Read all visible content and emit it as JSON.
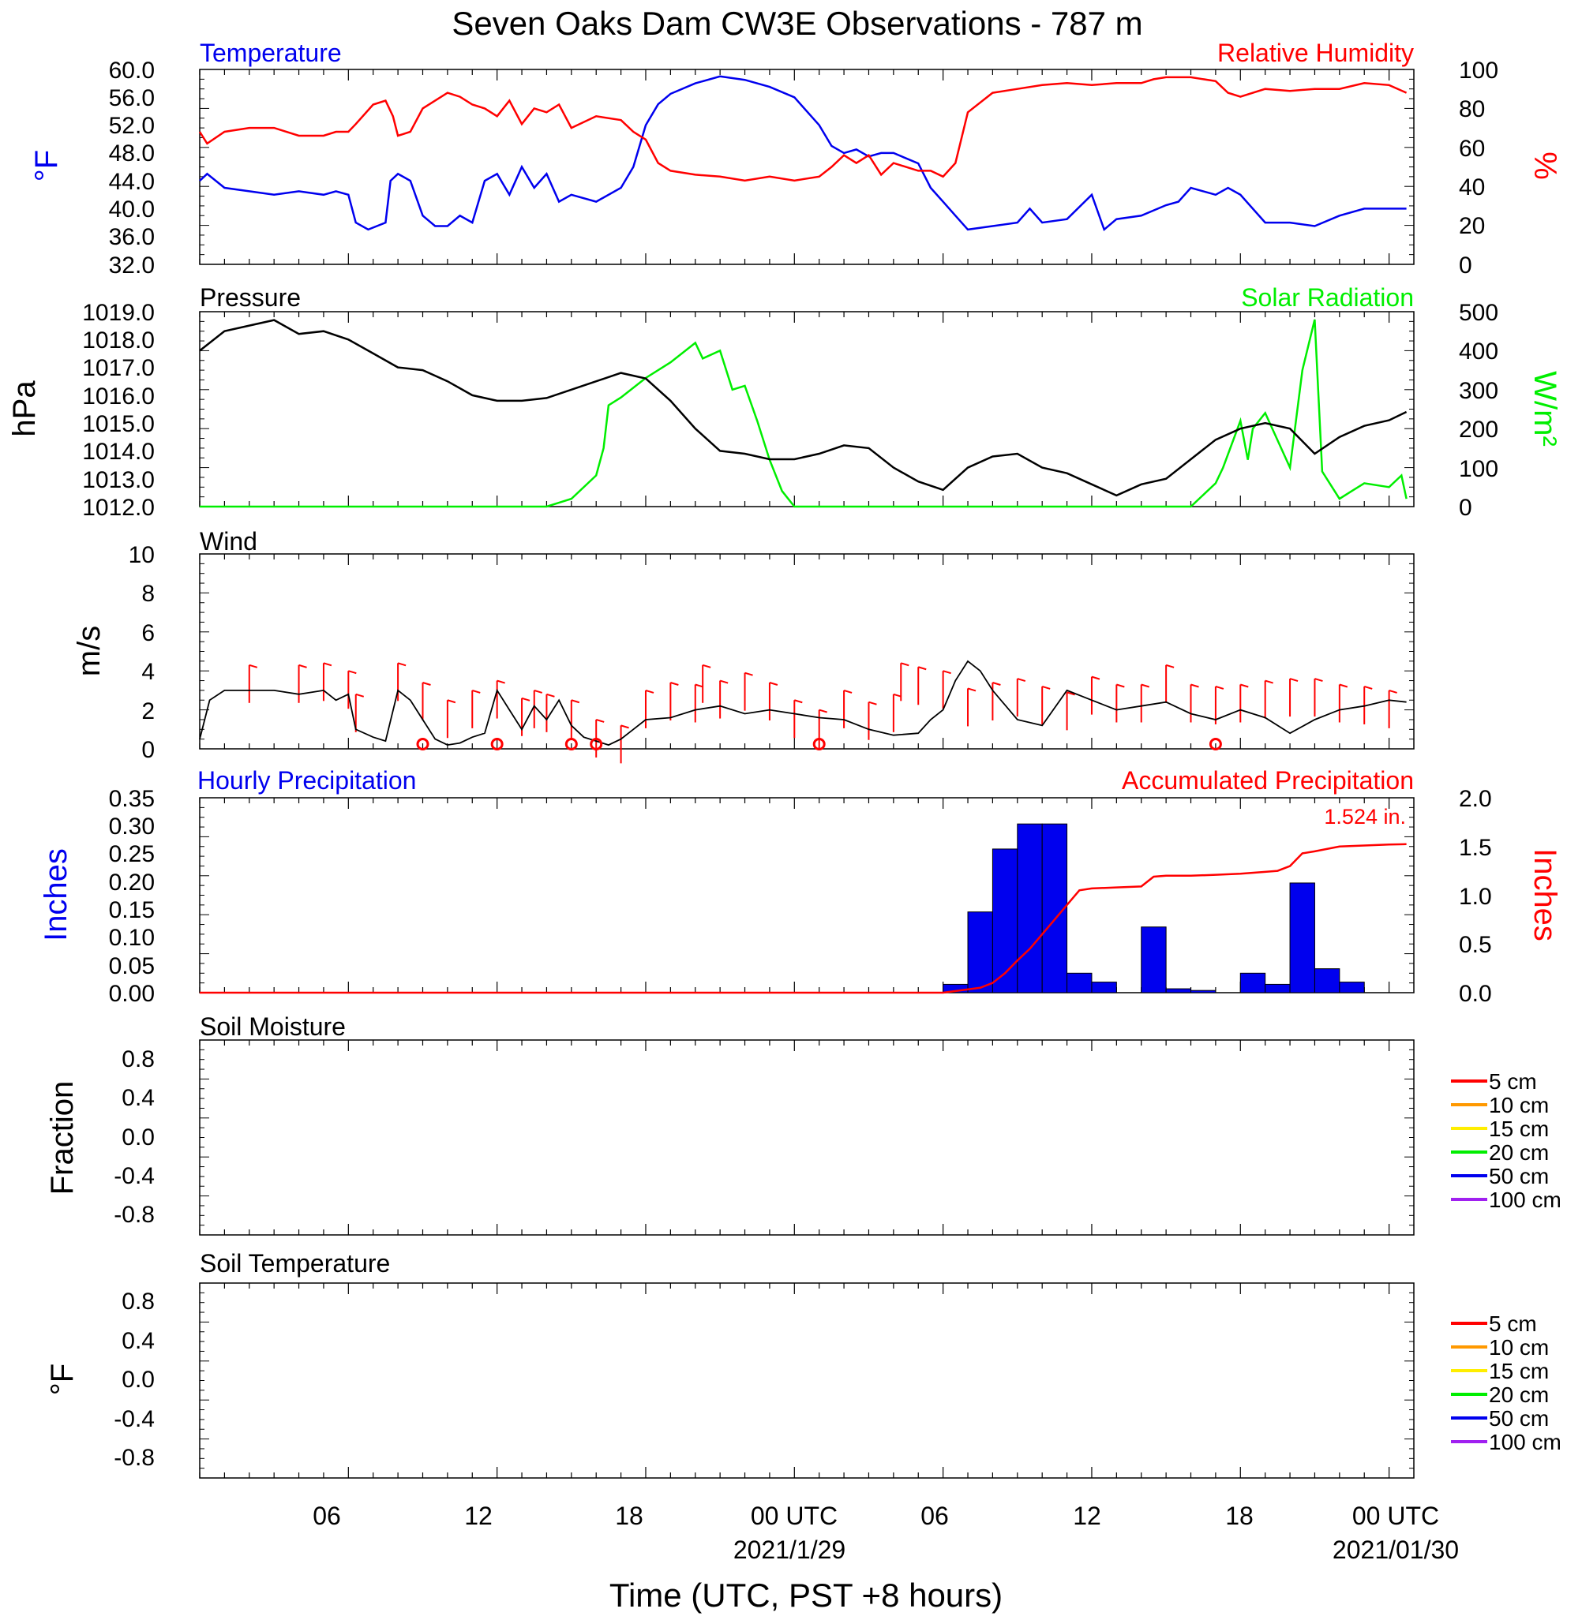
{
  "title": "Seven Oaks Dam CW3E Observations - 787 m",
  "x_axis": {
    "title": "Time (UTC, PST +8 hours)",
    "ticks": [
      "06",
      "12",
      "18",
      "00 UTC",
      "06",
      "12",
      "18",
      "00 UTC"
    ],
    "dates": [
      "2021/1/29",
      "2021/01/30"
    ]
  },
  "colors": {
    "temperature": "#0000ee",
    "humidity": "#ff0000",
    "pressure": "#000000",
    "solar": "#00ee00",
    "wind": "#000000",
    "wind_barb": "#ff0000",
    "hourly_precip": "#0000ee",
    "accum_precip": "#ff0000"
  },
  "panels": {
    "temp_rh": {
      "left_title": "Temperature",
      "right_title": "Relative Humidity",
      "left_unit": "°F",
      "right_unit": "%",
      "left_ticks": [
        "60.0",
        "56.0",
        "52.0",
        "48.0",
        "44.0",
        "40.0",
        "36.0",
        "32.0"
      ],
      "right_ticks": [
        "100",
        "80",
        "60",
        "40",
        "20",
        "0"
      ]
    },
    "pressure_solar": {
      "left_title": "Pressure",
      "right_title": "Solar Radiation",
      "left_unit": "hPa",
      "right_unit": "W/m²",
      "left_ticks": [
        "1019.0",
        "1018.0",
        "1017.0",
        "1016.0",
        "1015.0",
        "1014.0",
        "1013.0",
        "1012.0"
      ],
      "right_ticks": [
        "500",
        "400",
        "300",
        "200",
        "100",
        "0"
      ]
    },
    "wind": {
      "left_title": "Wind",
      "left_unit": "m/s",
      "left_ticks": [
        "10",
        "8",
        "6",
        "4",
        "2",
        "0"
      ]
    },
    "precip": {
      "left_title": "Hourly Precipitation",
      "right_title": "Accumulated Precipitation",
      "left_unit": "Inches",
      "right_unit": "Inches",
      "total_label": "1.524 in.",
      "left_ticks": [
        "0.35",
        "0.30",
        "0.25",
        "0.20",
        "0.15",
        "0.10",
        "0.05",
        "0.00"
      ],
      "right_ticks": [
        "2.0",
        "1.5",
        "1.0",
        "0.5",
        "0.0"
      ]
    },
    "soil_moisture": {
      "left_title": "Soil Moisture",
      "left_unit": "Fraction",
      "left_ticks": [
        "0.8",
        "0.4",
        "0.0",
        "-0.4",
        "-0.8"
      ],
      "legend": [
        "5 cm",
        "10 cm",
        "15 cm",
        "20 cm",
        "50 cm",
        "100 cm"
      ]
    },
    "soil_temp": {
      "left_title": "Soil Temperature",
      "left_unit": "°F",
      "left_ticks": [
        "0.8",
        "0.4",
        "0.0",
        "-0.4",
        "-0.8"
      ],
      "legend": [
        "5 cm",
        "10 cm",
        "15 cm",
        "20 cm",
        "50 cm",
        "100 cm"
      ]
    }
  },
  "legend_colors": [
    "#ff0000",
    "#ff9900",
    "#ffee00",
    "#00ee00",
    "#0000ee",
    "#a020f0"
  ],
  "chart_data": {
    "type": "line",
    "x_unit": "hours since 2021-01-28 00 UTC",
    "x_range": [
      0,
      49
    ],
    "temperature_F": {
      "ylim": [
        32,
        60
      ],
      "x": [
        0,
        0.3,
        1,
        2,
        3,
        4,
        5,
        5.5,
        6,
        6.3,
        6.8,
        7.5,
        7.7,
        8,
        8.5,
        9,
        9.5,
        10,
        10.5,
        11,
        11.5,
        12,
        12.5,
        13,
        13.5,
        14,
        14.5,
        15,
        16,
        17,
        17.5,
        18,
        18.5,
        19,
        20,
        21,
        22,
        23,
        24,
        25,
        25.5,
        26,
        26.5,
        27,
        27.5,
        28,
        29,
        29.5,
        30,
        30.5,
        31,
        32,
        33,
        33.5,
        34,
        35,
        36,
        36.5,
        37,
        38,
        39,
        39.5,
        40,
        40.5,
        41,
        41.5,
        42,
        43,
        44,
        45,
        46,
        47,
        48,
        48.7
      ],
      "y": [
        44,
        45,
        43,
        42.5,
        42,
        42.5,
        42,
        42.5,
        42,
        38,
        37,
        38,
        44,
        45,
        44,
        39,
        37.5,
        37.5,
        39,
        38,
        44,
        45,
        42,
        46,
        43,
        45,
        41,
        42,
        41,
        43,
        46,
        52,
        55,
        56.5,
        58,
        59,
        58.5,
        57.5,
        56,
        52,
        49,
        48,
        48.5,
        47.5,
        48,
        48,
        46.5,
        43,
        41,
        39,
        37,
        37.5,
        38,
        40,
        38,
        38.5,
        42,
        37,
        38.5,
        39,
        40.5,
        41,
        43,
        42.5,
        42,
        43,
        42,
        38,
        38,
        37.5,
        39,
        40,
        40,
        40
      ]
    },
    "humidity_pct": {
      "ylim": [
        0,
        100
      ],
      "x": [
        0,
        0.3,
        1,
        2,
        3,
        4,
        5,
        5.5,
        6,
        6.3,
        7,
        7.5,
        7.8,
        8,
        8.5,
        9,
        10,
        10.5,
        11,
        11.5,
        12,
        12.5,
        13,
        13.5,
        14,
        14.5,
        15,
        16,
        17,
        17.5,
        18,
        18.5,
        19,
        20,
        21,
        22,
        23,
        24,
        25,
        25.5,
        26,
        26.5,
        27,
        27.5,
        28,
        29,
        29.5,
        30,
        30.5,
        31,
        32,
        33,
        34,
        35,
        36,
        37,
        38,
        38.5,
        39,
        40,
        41,
        41.5,
        42,
        43,
        44,
        45,
        46,
        47,
        48,
        48.7
      ],
      "y": [
        68,
        62,
        68,
        70,
        70,
        66,
        66,
        68,
        68,
        72,
        82,
        84,
        76,
        66,
        68,
        80,
        88,
        86,
        82,
        80,
        76,
        84,
        72,
        80,
        78,
        82,
        70,
        76,
        74,
        68,
        64,
        52,
        48,
        46,
        45,
        43,
        45,
        43,
        45,
        50,
        56,
        52,
        56,
        46,
        52,
        48,
        48,
        45,
        52,
        78,
        88,
        90,
        92,
        93,
        92,
        93,
        93,
        95,
        96,
        96,
        94,
        88,
        86,
        90,
        89,
        90,
        90,
        93,
        92,
        88
      ]
    },
    "pressure_hPa": {
      "ylim": [
        1012,
        1019
      ],
      "x": [
        0,
        1,
        2,
        3,
        4,
        5,
        6,
        7,
        8,
        9,
        10,
        11,
        12,
        13,
        14,
        15,
        16,
        17,
        18,
        19,
        20,
        21,
        22,
        23,
        24,
        25,
        26,
        27,
        28,
        29,
        30,
        31,
        32,
        33,
        34,
        35,
        36,
        37,
        38,
        39,
        40,
        41,
        42,
        43,
        44,
        45,
        46,
        47,
        48,
        48.7
      ],
      "y": [
        1017.6,
        1018.3,
        1018.5,
        1018.7,
        1018.2,
        1018.3,
        1018.0,
        1017.5,
        1017.0,
        1016.9,
        1016.5,
        1016.0,
        1015.8,
        1015.8,
        1015.9,
        1016.2,
        1016.5,
        1016.8,
        1016.6,
        1015.8,
        1014.8,
        1014.0,
        1013.9,
        1013.7,
        1013.7,
        1013.9,
        1014.2,
        1014.1,
        1013.4,
        1012.9,
        1012.6,
        1013.4,
        1013.8,
        1013.9,
        1013.4,
        1013.2,
        1012.8,
        1012.4,
        1012.8,
        1013.0,
        1013.7,
        1014.4,
        1014.8,
        1015.0,
        1014.8,
        1013.9,
        1014.5,
        1014.9,
        1015.1,
        1015.4
      ]
    },
    "solar_Wm2": {
      "ylim": [
        0,
        500
      ],
      "x": [
        0,
        14,
        15,
        16,
        16.3,
        16.5,
        17,
        18,
        19,
        20,
        20.3,
        21,
        21.5,
        22,
        22.5,
        23,
        23.5,
        24,
        32,
        40,
        41,
        41.3,
        42,
        42.3,
        42.5,
        43,
        44,
        44.5,
        45,
        45.3,
        46,
        46.5,
        47,
        48,
        48.5,
        48.7
      ],
      "y": [
        0,
        0,
        20,
        80,
        150,
        260,
        280,
        330,
        370,
        420,
        380,
        400,
        300,
        310,
        220,
        120,
        40,
        0,
        0,
        0,
        60,
        100,
        220,
        120,
        200,
        240,
        100,
        350,
        480,
        90,
        20,
        40,
        60,
        50,
        80,
        20
      ]
    },
    "wind_ms": {
      "ylim": [
        0,
        10
      ],
      "x": [
        0,
        0.4,
        1,
        2,
        3,
        4,
        5,
        5.5,
        6,
        6.3,
        7,
        7.5,
        8,
        8.5,
        9,
        9.5,
        10,
        10.5,
        11,
        11.5,
        12,
        12.5,
        13,
        13.5,
        14,
        14.5,
        15,
        15.5,
        16,
        16.5,
        17,
        17.5,
        18,
        19,
        20,
        21,
        22,
        23,
        24,
        25,
        26,
        27,
        28,
        29,
        29.5,
        30,
        30.5,
        31,
        31.5,
        32,
        33,
        34,
        35,
        36,
        37,
        38,
        39,
        40,
        41,
        42,
        43,
        44,
        45,
        46,
        47,
        48,
        48.7
      ],
      "y": [
        0.5,
        2.5,
        3,
        3,
        3,
        2.8,
        3,
        2.5,
        2.8,
        1,
        0.6,
        0.4,
        3,
        2.5,
        1.5,
        0.5,
        0.2,
        0.3,
        0.6,
        0.8,
        3,
        2,
        1,
        2.2,
        1.5,
        2.5,
        1.2,
        0.6,
        0.4,
        0.2,
        0.5,
        1,
        1.5,
        1.6,
        2,
        2.2,
        1.8,
        2,
        1.8,
        1.6,
        1.5,
        1,
        0.7,
        0.8,
        1.5,
        2,
        3.5,
        4.5,
        4,
        3,
        1.5,
        1.2,
        3,
        2.5,
        2,
        2.2,
        2.4,
        1.8,
        1.5,
        2,
        1.6,
        0.8,
        1.5,
        2,
        2.2,
        2.5,
        2.4
      ]
    },
    "wind_calm_x": [
      9,
      12,
      15,
      16,
      25,
      41
    ],
    "wind_barbs": {
      "x": [
        2,
        4,
        5,
        6,
        6.3,
        8,
        9,
        10,
        11,
        12,
        13,
        13.5,
        14,
        15,
        16,
        17,
        18,
        19,
        20,
        20.3,
        21,
        22,
        23,
        24,
        25,
        26,
        27,
        28,
        28.3,
        29,
        30,
        31,
        32,
        33,
        34,
        35,
        36,
        37,
        38,
        39,
        40,
        41,
        42,
        43,
        44,
        45,
        46,
        47,
        48
      ],
      "speed": [
        4.3,
        4.3,
        4.4,
        4.0,
        2.8,
        4.4,
        3.4,
        2.5,
        3.0,
        3.5,
        2.6,
        3.0,
        2.8,
        2.5,
        1.5,
        1.2,
        3.0,
        3.4,
        3.3,
        4.3,
        3.5,
        3.9,
        3.4,
        2.5,
        2.0,
        3.0,
        2.4,
        2.8,
        4.4,
        4.2,
        4.0,
        3.1,
        3.4,
        3.6,
        3.2,
        2.9,
        3.7,
        3.3,
        3.3,
        4.3,
        3.3,
        3.2,
        3.3,
        3.5,
        3.6,
        3.6,
        3.3,
        3.2,
        3.0
      ]
    },
    "hourly_precip_in": {
      "ylim": [
        0,
        0.35
      ],
      "bins": [
        [
          30,
          31,
          0.015
        ],
        [
          31,
          32,
          0.145
        ],
        [
          32,
          33,
          0.258
        ],
        [
          33,
          34,
          0.303
        ],
        [
          34,
          35,
          0.303
        ],
        [
          35,
          36,
          0.035
        ],
        [
          36,
          37,
          0.019
        ],
        [
          38,
          39,
          0.118
        ],
        [
          39,
          40,
          0.007
        ],
        [
          40,
          41,
          0.004
        ],
        [
          42,
          43,
          0.035
        ],
        [
          43,
          44,
          0.015
        ],
        [
          44,
          45,
          0.197
        ],
        [
          45,
          46,
          0.043
        ],
        [
          46,
          47,
          0.019
        ]
      ]
    },
    "accum_precip_in": {
      "ylim": [
        0,
        2.0
      ],
      "x": [
        0,
        30,
        31.5,
        32,
        32.5,
        33,
        33.5,
        34,
        34.5,
        35,
        35.5,
        36,
        37,
        38,
        38.5,
        39,
        40,
        41,
        42,
        43,
        43.5,
        44,
        44.5,
        45,
        46,
        47,
        48,
        48.7
      ],
      "y": [
        0,
        0,
        0.05,
        0.1,
        0.2,
        0.33,
        0.45,
        0.6,
        0.75,
        0.9,
        1.05,
        1.07,
        1.08,
        1.09,
        1.19,
        1.2,
        1.2,
        1.21,
        1.22,
        1.24,
        1.25,
        1.3,
        1.43,
        1.45,
        1.5,
        1.51,
        1.52,
        1.524
      ]
    },
    "soil_moisture": {
      "ylim": [
        -1,
        1
      ],
      "series": []
    },
    "soil_temperature": {
      "ylim": [
        -1,
        1
      ],
      "series": []
    }
  }
}
